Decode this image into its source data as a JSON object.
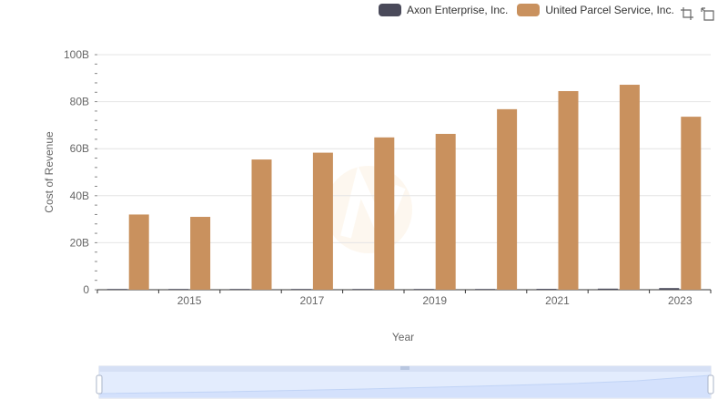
{
  "chart_data": {
    "type": "bar",
    "xlabel": "Year",
    "ylabel": "Cost of Revenue",
    "x": [
      2014,
      2015,
      2016,
      2017,
      2018,
      2019,
      2020,
      2021,
      2022,
      2023
    ],
    "x_tick_labels": [
      "2015",
      "2017",
      "2019",
      "2021",
      "2023"
    ],
    "x_tick_values": [
      2015,
      2017,
      2019,
      2021,
      2023
    ],
    "y_tick_labels": [
      "0",
      "20B",
      "40B",
      "60B",
      "80B",
      "100B"
    ],
    "y_tick_values": [
      0,
      20,
      40,
      60,
      80,
      100
    ],
    "ylim": [
      0,
      100
    ],
    "y_unit": "billions",
    "grid": true,
    "legend_position": "top-right",
    "series": [
      {
        "name": "Axon Enterprise, Inc.",
        "color": "#4a4a5a",
        "values": [
          0.08,
          0.08,
          0.11,
          0.15,
          0.17,
          0.22,
          0.28,
          0.36,
          0.46,
          0.69
        ]
      },
      {
        "name": "United Parcel Service, Inc.",
        "color": "#c9915e",
        "values": [
          32.0,
          31.0,
          55.4,
          58.3,
          64.8,
          66.3,
          76.8,
          84.5,
          87.2,
          73.6
        ]
      }
    ]
  },
  "legend": {
    "items": [
      {
        "label": "Axon Enterprise, Inc.",
        "color": "#4a4a5a"
      },
      {
        "label": "United Parcel Service, Inc.",
        "color": "#c9915e"
      }
    ]
  },
  "toolbar": {
    "icons": [
      "zoom-icon",
      "restore-icon"
    ]
  }
}
